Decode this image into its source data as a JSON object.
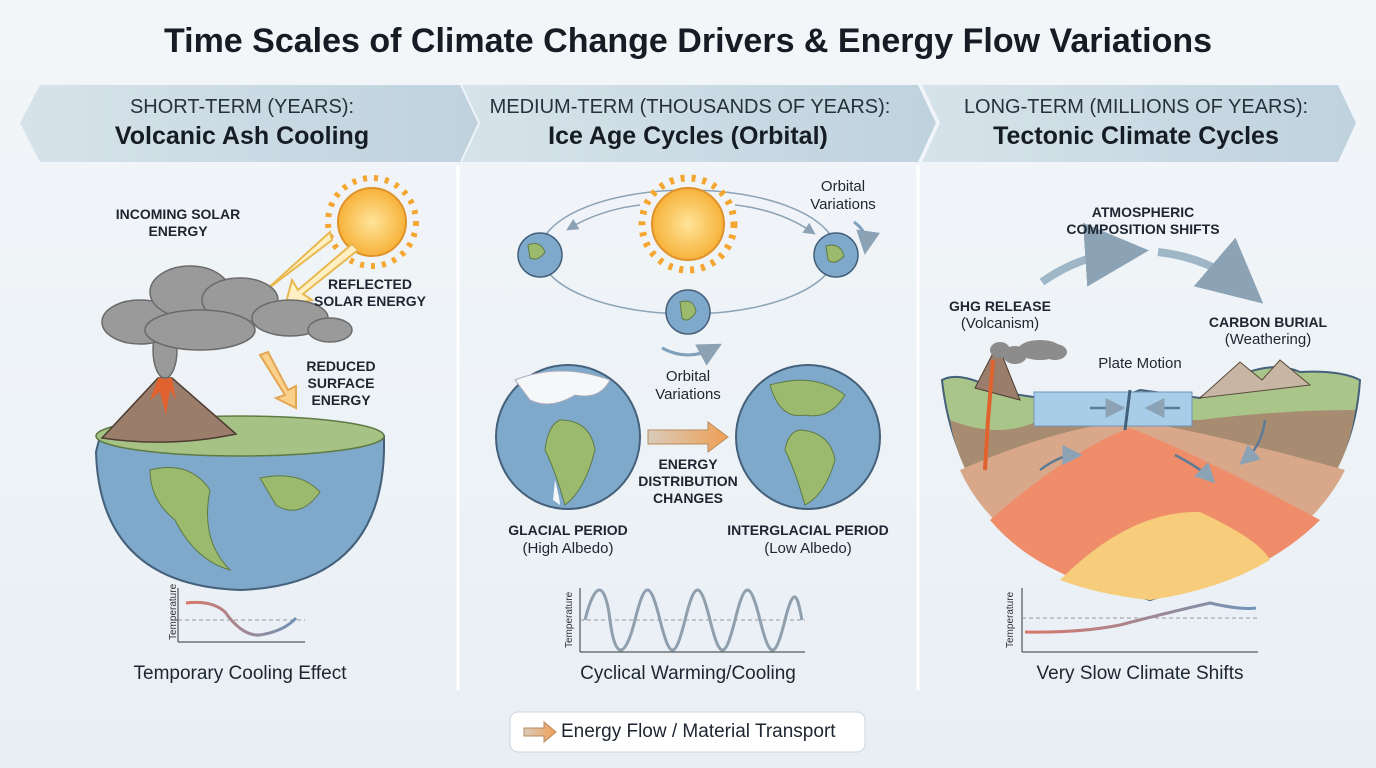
{
  "title": "Time Scales of Climate Change Drivers & Energy Flow Variations",
  "panels": [
    {
      "timescale": "SHORT-TERM (YEARS):",
      "heading": "Volcanic Ash Cooling",
      "labels": [
        "INCOMING SOLAR ENERGY",
        "REFLECTED SOLAR ENERGY",
        "REDUCED SURFACE ENERGY"
      ],
      "axis_label": "Temperature",
      "caption": "Temporary Cooling Effect"
    },
    {
      "timescale": "MEDIUM-TERM (THOUSANDS OF YEARS):",
      "heading": "Ice Age Cycles (Orbital)",
      "labels": [
        "Orbital Variations",
        "Orbital Variations",
        "ENERGY DISTRIBUTION CHANGES",
        "GLACIAL PERIOD",
        "(High Albedo)",
        "INTERGLACIAL PERIOD",
        "(Low Albedo)"
      ],
      "axis_label": "Temperature",
      "caption": "Cyclical Warming/Cooling"
    },
    {
      "timescale": "LONG-TERM (MILLIONS OF YEARS):",
      "heading": "Tectonic Climate Cycles",
      "labels": [
        "ATMOSPHERIC COMPOSITION SHIFTS",
        "GHG RELEASE",
        "(Volcanism)",
        "CARBON BURIAL",
        "(Weathering)",
        "Plate Motion"
      ],
      "axis_label": "Temperature",
      "caption": "Very Slow Climate Shifts"
    }
  ],
  "legend": "Energy Flow / Material Transport"
}
